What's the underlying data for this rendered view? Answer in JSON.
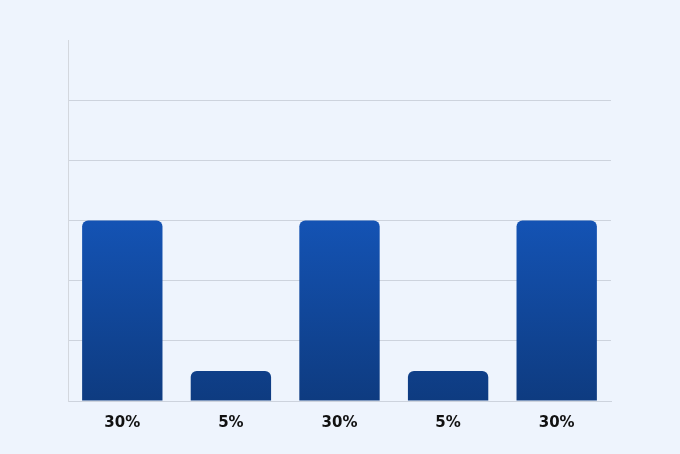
{
  "chart_data": {
    "type": "bar",
    "categories": [
      "30%",
      "5%",
      "30%",
      "5%",
      "30%"
    ],
    "values": [
      30,
      5,
      30,
      5,
      30
    ],
    "color": "#1a6be8",
    "ylim": [
      0,
      60
    ],
    "yticks": [
      0,
      10,
      20,
      30,
      40,
      50
    ],
    "grid": true,
    "tick_labels": "x"
  }
}
